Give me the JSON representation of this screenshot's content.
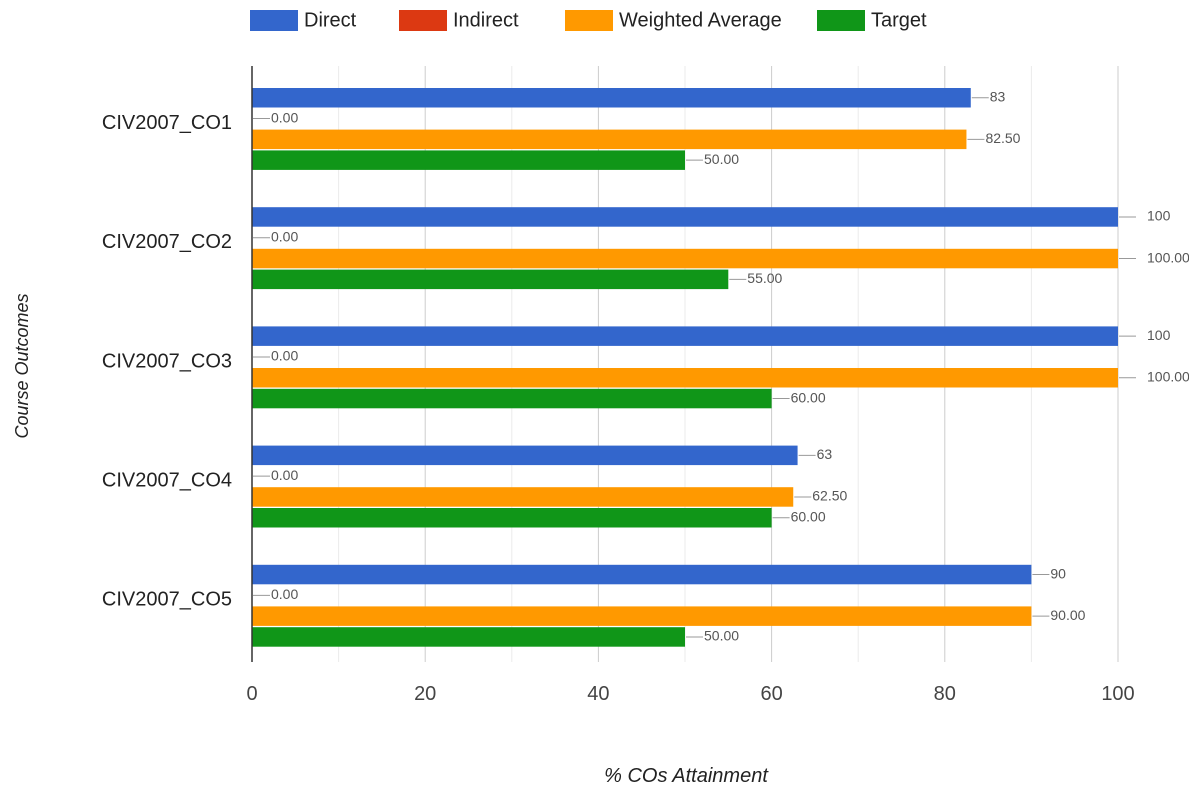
{
  "colors": {
    "direct": "#3366cc",
    "indirect": "#dc3912",
    "weighted_average": "#ff9900",
    "target": "#109618",
    "gridline": "#cccccc",
    "minor_gridline": "#ebebeb",
    "axis": "#333333",
    "leader": "#999999",
    "label_text": "#555555"
  },
  "chart_data": {
    "type": "bar",
    "orientation": "horizontal",
    "categories": [
      "CIV2007_CO1",
      "CIV2007_CO2",
      "CIV2007_CO3",
      "CIV2007_CO4",
      "CIV2007_CO5"
    ],
    "series": [
      {
        "name": "Direct",
        "color_key": "direct",
        "values": [
          83,
          100,
          100,
          63,
          90
        ],
        "labels": [
          "83",
          "100",
          "100",
          "63",
          "90"
        ]
      },
      {
        "name": "Indirect",
        "color_key": "indirect",
        "values": [
          0,
          0,
          0,
          0,
          0
        ],
        "labels": [
          "0.00",
          "0.00",
          "0.00",
          "0.00",
          "0.00"
        ]
      },
      {
        "name": "Weighted Average",
        "color_key": "weighted_average",
        "values": [
          82.5,
          100,
          100,
          62.5,
          90
        ],
        "labels": [
          "82.50",
          "100.00",
          "100.00",
          "62.50",
          "90.00"
        ]
      },
      {
        "name": "Target",
        "color_key": "target",
        "values": [
          50,
          55,
          60,
          60,
          50
        ],
        "labels": [
          "50.00",
          "55.00",
          "60.00",
          "60.00",
          "50.00"
        ]
      }
    ],
    "xlabel": "% COs Attainment",
    "ylabel": "Course Outcomes",
    "xlim": [
      0,
      100
    ],
    "x_ticks": [
      "0",
      "20",
      "40",
      "60",
      "80",
      "100"
    ],
    "grid": true,
    "legend_position": "top"
  }
}
